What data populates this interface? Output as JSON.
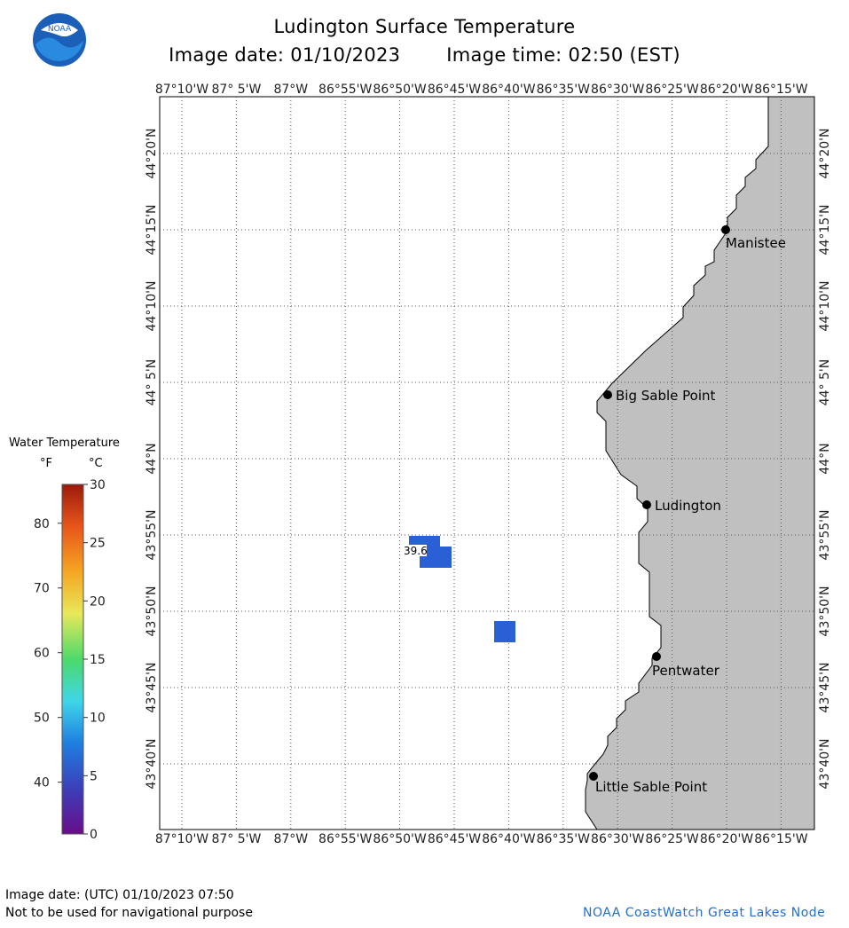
{
  "header": {
    "title": "Ludington Surface Temperature",
    "image_date": "Image date: 01/10/2023",
    "image_time": "Image time: 02:50 (EST)"
  },
  "logo": {
    "name": "noaa-logo",
    "text": "NOAA"
  },
  "axes": {
    "lon_labels": [
      "87°10'W",
      "87° 5'W",
      "87°W",
      "86°55'W",
      "86°50'W",
      "86°45'W",
      "86°40'W",
      "86°35'W",
      "86°30'W",
      "86°25'W",
      "86°20'W",
      "86°15'W"
    ],
    "lat_labels": [
      "44°20'N",
      "44°15'N",
      "44°10'N",
      "44° 5'N",
      "44°N",
      "43°55'N",
      "43°50'N",
      "43°45'N",
      "43°40'N"
    ]
  },
  "places": [
    {
      "name": "Manistee"
    },
    {
      "name": "Big Sable Point"
    },
    {
      "name": "Ludington"
    },
    {
      "name": "Pentwater"
    },
    {
      "name": "Little Sable Point"
    }
  ],
  "observation_label": "39.6",
  "legend": {
    "title": "Water Temperature",
    "unit_f": "°F",
    "unit_c": "°C",
    "f_ticks": [
      "80",
      "70",
      "60",
      "50",
      "40"
    ],
    "c_ticks": [
      "30",
      "25",
      "20",
      "15",
      "10",
      "5",
      "0"
    ]
  },
  "footer": {
    "utc_date": "Image date: (UTC) 01/10/2023   07:50",
    "disclaimer": "Not to be used for navigational purpose",
    "credit": "NOAA CoastWatch Great Lakes Node"
  },
  "colors": {
    "land": "#c0c0c0",
    "water": "#ffffff",
    "observation": "#2a5fd6",
    "credit": "#1f6fd1",
    "colorbar": [
      "#6a0d8a",
      "#3b3fb8",
      "#1f7fe0",
      "#3fd6e8",
      "#4cd96a",
      "#e8e85a",
      "#f5a623",
      "#e8551a",
      "#9b1a0c"
    ]
  }
}
